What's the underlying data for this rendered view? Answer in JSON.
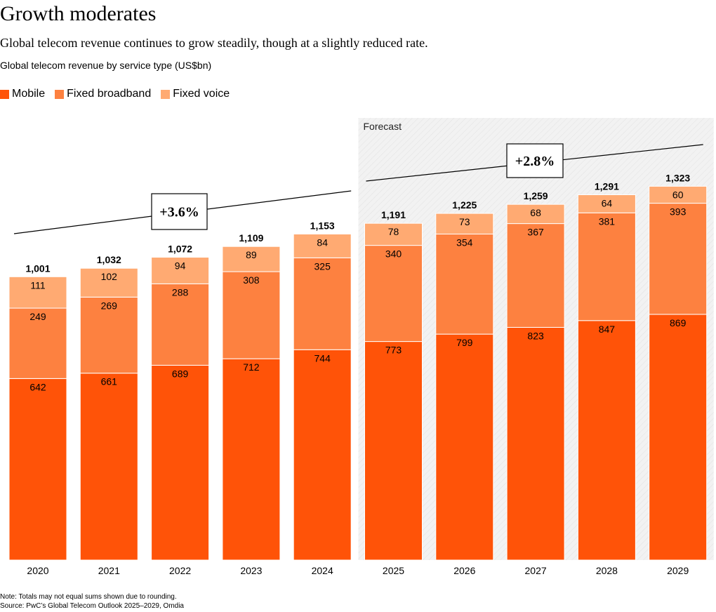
{
  "header": {
    "title": "Growth moderates",
    "subtitle": "Global telecom revenue continues to grow steadily, though at a slightly reduced rate.",
    "chart_label": "Global telecom revenue by service type (US$bn)"
  },
  "footer": {
    "note": "Note: Totals may not equal sums shown due to rounding.",
    "source": "Source: PwC’s Global Telecom Outlook 2025–2029, Omdia"
  },
  "colors": {
    "mobile": "#ff5308",
    "fixed_broadband": "#fd8140",
    "fixed_voice": "#ffaa72",
    "forecast_bg": "#f2f2f2"
  },
  "chart_data": {
    "type": "bar",
    "stacked": true,
    "title": "Global telecom revenue by service type (US$bn)",
    "categories": [
      "2020",
      "2021",
      "2022",
      "2023",
      "2024",
      "2025",
      "2026",
      "2027",
      "2028",
      "2029"
    ],
    "series": [
      {
        "name": "Mobile",
        "values": [
          642,
          661,
          689,
          712,
          744,
          773,
          799,
          823,
          847,
          869
        ]
      },
      {
        "name": "Fixed broadband",
        "values": [
          249,
          269,
          288,
          308,
          325,
          340,
          354,
          367,
          381,
          393
        ]
      },
      {
        "name": "Fixed voice",
        "values": [
          111,
          102,
          94,
          89,
          84,
          78,
          73,
          68,
          64,
          60
        ]
      }
    ],
    "totals": [
      "1,001",
      "1,032",
      "1,072",
      "1,109",
      "1,153",
      "1,191",
      "1,225",
      "1,259",
      "1,291",
      "1,323"
    ],
    "forecast": {
      "label": "Forecast",
      "start_category": "2025",
      "end_category": "2029"
    },
    "growth_annotations": [
      {
        "label": "+3.6%",
        "from": "2020",
        "to": "2024"
      },
      {
        "label": "+2.8%",
        "from": "2025",
        "to": "2029"
      }
    ],
    "ylim": [
      0,
      1580
    ],
    "grid": false,
    "legend_position": "top-left"
  }
}
